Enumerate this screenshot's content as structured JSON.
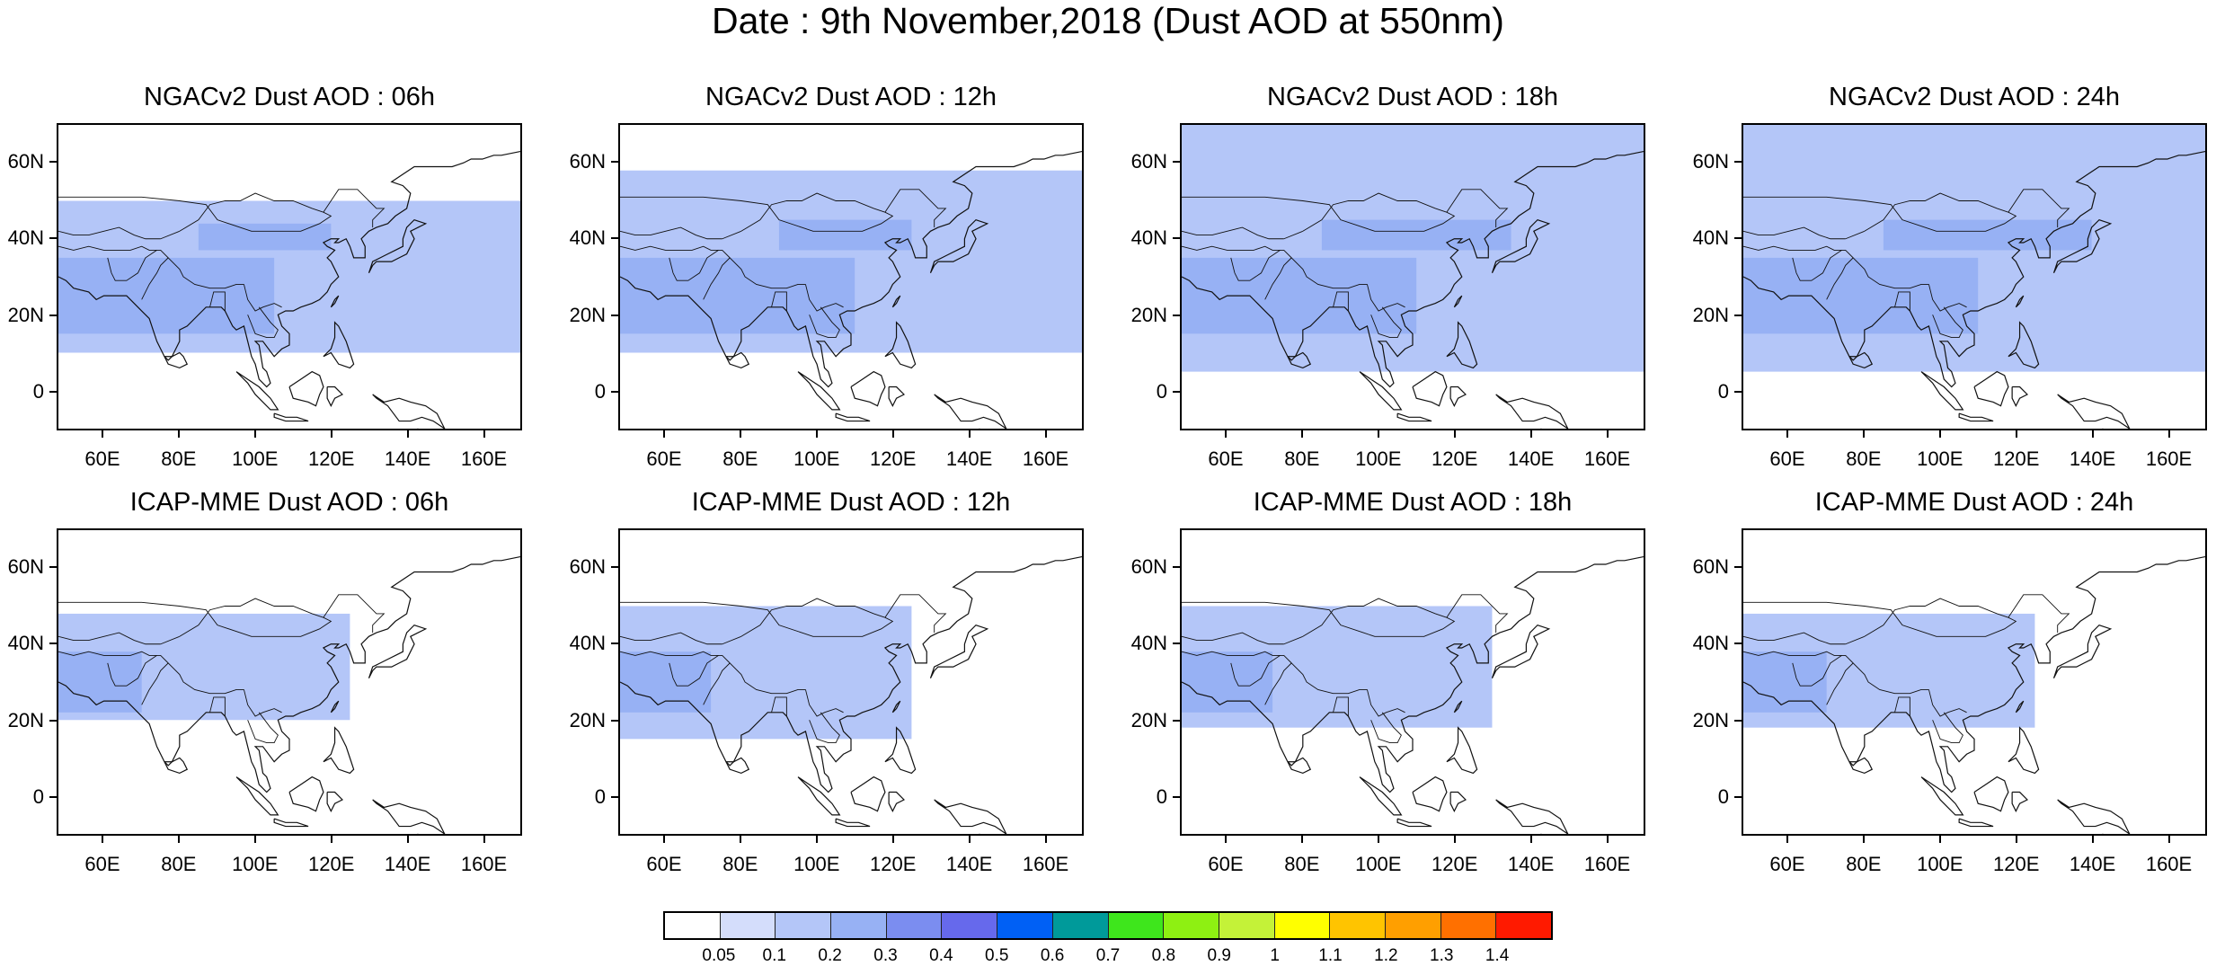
{
  "title": "Date : 9th November,2018 (Dust AOD at 550nm)",
  "map": {
    "lon_range": [
      48,
      170
    ],
    "lat_range": [
      -10,
      70
    ],
    "lat_ticks": [
      {
        "value": 60,
        "label": "60N"
      },
      {
        "value": 40,
        "label": "40N"
      },
      {
        "value": 20,
        "label": "20N"
      },
      {
        "value": 0,
        "label": "0"
      }
    ],
    "lon_ticks": [
      {
        "value": 60,
        "label": "60E"
      },
      {
        "value": 80,
        "label": "80E"
      },
      {
        "value": 100,
        "label": "100E"
      },
      {
        "value": 120,
        "label": "120E"
      },
      {
        "value": 140,
        "label": "140E"
      },
      {
        "value": 160,
        "label": "160E"
      }
    ]
  },
  "panels": [
    {
      "title": "NGACv2 Dust AOD : 06h",
      "model": "NGACv2",
      "hour": "06h"
    },
    {
      "title": "NGACv2 Dust AOD : 12h",
      "model": "NGACv2",
      "hour": "12h"
    },
    {
      "title": "NGACv2 Dust AOD : 18h",
      "model": "NGACv2",
      "hour": "18h"
    },
    {
      "title": "NGACv2 Dust AOD : 24h",
      "model": "NGACv2",
      "hour": "24h"
    },
    {
      "title": "ICAP-MME Dust AOD : 06h",
      "model": "ICAP-MME",
      "hour": "06h"
    },
    {
      "title": "ICAP-MME Dust AOD : 12h",
      "model": "ICAP-MME",
      "hour": "12h"
    },
    {
      "title": "ICAP-MME Dust AOD : 18h",
      "model": "ICAP-MME",
      "hour": "18h"
    },
    {
      "title": "ICAP-MME Dust AOD : 24h",
      "model": "ICAP-MME",
      "hour": "24h"
    }
  ],
  "colorbar": {
    "colors": [
      "#ffffff",
      "#d4ddfb",
      "#b4c6f8",
      "#97b1f4",
      "#7b8df0",
      "#6669ec",
      "#0060f5",
      "#009a9a",
      "#3ee61c",
      "#8ef012",
      "#c4f238",
      "#ffff00",
      "#ffc400",
      "#ff9f00",
      "#ff7000",
      "#ff1a00"
    ],
    "labels": [
      "0.05",
      "0.1",
      "0.2",
      "0.3",
      "0.4",
      "0.5",
      "0.6",
      "0.7",
      "0.8",
      "0.9",
      "1",
      "1.1",
      "1.2",
      "1.3",
      "1.4"
    ]
  },
  "chart_data": {
    "type": "heatmap",
    "title": "Date : 9th November,2018 (Dust AOD at 550nm)",
    "variable": "Dust AOD at 550nm",
    "date": "9th November,2018",
    "xlim": [
      48,
      170
    ],
    "ylim": [
      -10,
      70
    ],
    "levels": [
      0.05,
      0.1,
      0.2,
      0.3,
      0.4,
      0.5,
      0.6,
      0.7,
      0.8,
      0.9,
      1,
      1.1,
      1.2,
      1.3,
      1.4
    ],
    "panels": [
      {
        "title": "NGACv2 Dust AOD : 06h",
        "regions": [
          {
            "lon": [
              48,
              170
            ],
            "lat": [
              10,
              50
            ],
            "value": 0.1
          },
          {
            "lon": [
              48,
              105
            ],
            "lat": [
              15,
              35
            ],
            "value": 0.2
          },
          {
            "lon": [
              85,
              120
            ],
            "lat": [
              37,
              44
            ],
            "value": 0.2
          }
        ]
      },
      {
        "title": "NGACv2 Dust AOD : 12h",
        "regions": [
          {
            "lon": [
              48,
              170
            ],
            "lat": [
              10,
              58
            ],
            "value": 0.1
          },
          {
            "lon": [
              48,
              110
            ],
            "lat": [
              15,
              35
            ],
            "value": 0.2
          },
          {
            "lon": [
              90,
              125
            ],
            "lat": [
              37,
              45
            ],
            "value": 0.2
          }
        ]
      },
      {
        "title": "NGACv2 Dust AOD : 18h",
        "regions": [
          {
            "lon": [
              48,
              170
            ],
            "lat": [
              5,
              70
            ],
            "value": 0.1
          },
          {
            "lon": [
              48,
              110
            ],
            "lat": [
              15,
              35
            ],
            "value": 0.2
          },
          {
            "lon": [
              85,
              135
            ],
            "lat": [
              37,
              45
            ],
            "value": 0.2
          }
        ]
      },
      {
        "title": "NGACv2 Dust AOD : 24h",
        "regions": [
          {
            "lon": [
              48,
              170
            ],
            "lat": [
              5,
              70
            ],
            "value": 0.1
          },
          {
            "lon": [
              48,
              110
            ],
            "lat": [
              15,
              35
            ],
            "value": 0.2
          },
          {
            "lon": [
              85,
              140
            ],
            "lat": [
              37,
              45
            ],
            "value": 0.2
          }
        ]
      },
      {
        "title": "ICAP-MME Dust AOD : 06h",
        "regions": [
          {
            "lon": [
              48,
              125
            ],
            "lat": [
              20,
              48
            ],
            "value": 0.1
          },
          {
            "lon": [
              48,
              70
            ],
            "lat": [
              22,
              38
            ],
            "value": 0.2
          }
        ]
      },
      {
        "title": "ICAP-MME Dust AOD : 12h",
        "regions": [
          {
            "lon": [
              48,
              125
            ],
            "lat": [
              15,
              50
            ],
            "value": 0.1
          },
          {
            "lon": [
              48,
              72
            ],
            "lat": [
              22,
              38
            ],
            "value": 0.2
          }
        ]
      },
      {
        "title": "ICAP-MME Dust AOD : 18h",
        "regions": [
          {
            "lon": [
              48,
              130
            ],
            "lat": [
              18,
              50
            ],
            "value": 0.1
          },
          {
            "lon": [
              48,
              72
            ],
            "lat": [
              22,
              38
            ],
            "value": 0.2
          }
        ]
      },
      {
        "title": "ICAP-MME Dust AOD : 24h",
        "regions": [
          {
            "lon": [
              48,
              125
            ],
            "lat": [
              18,
              48
            ],
            "value": 0.1
          },
          {
            "lon": [
              48,
              70
            ],
            "lat": [
              22,
              38
            ],
            "value": 0.2
          }
        ]
      }
    ]
  }
}
